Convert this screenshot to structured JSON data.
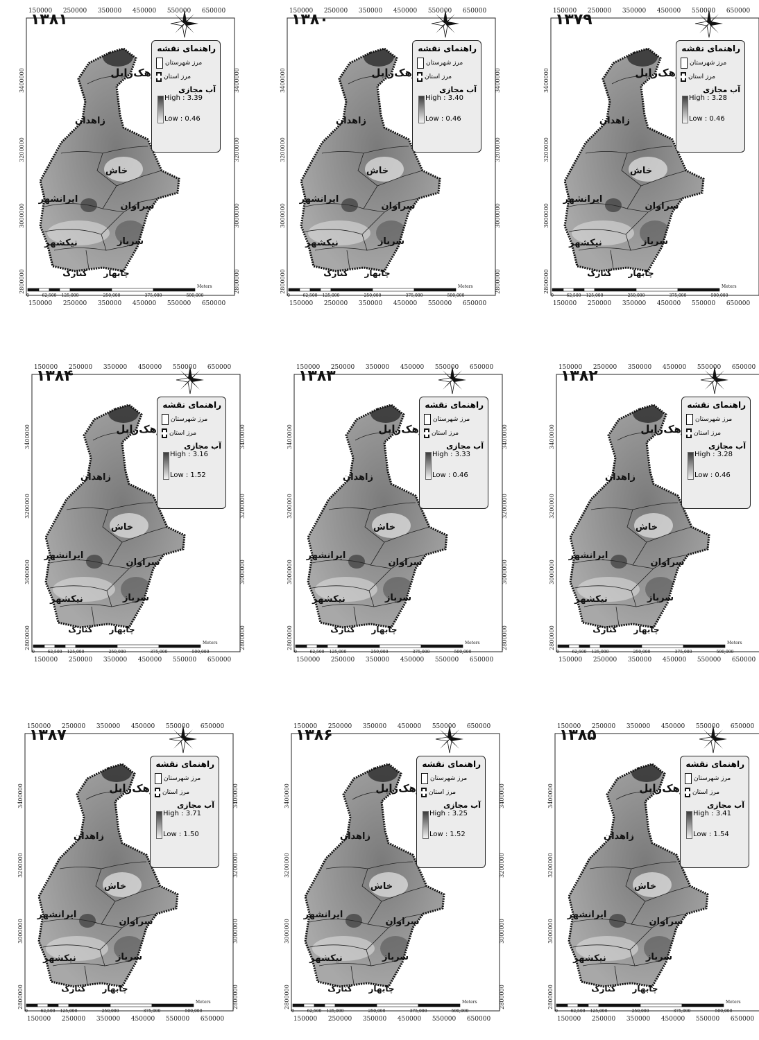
{
  "x_ticks": [
    "150000",
    "250000",
    "350000",
    "450000",
    "550000",
    "650000"
  ],
  "y_ticks": [
    "3400000",
    "3200000",
    "3000000",
    "2800000"
  ],
  "legend": {
    "title": "راهنمای نقشه",
    "county_border": "مرز شهرستان",
    "province_border": "مرز استان",
    "layer_title": "آب مجازی"
  },
  "counties": {
    "zahak_zabol": "زهک‌زابل",
    "zahedan": "زاهدان",
    "khash": "خاش",
    "iranshahr": "ایرانشهر",
    "saravan": "سراوان",
    "nikshahr": "نیکشهر",
    "sarbaz": "سرباز",
    "chabahar": "چابهار",
    "konarak": "کنارک"
  },
  "scale_bar": {
    "labels": [
      "0",
      "62,500",
      "125,000",
      "250,000",
      "375,000",
      "500,000"
    ],
    "unit": "Meters"
  },
  "maps": [
    {
      "year": "۱۳۸۱",
      "high": "High : 3.39",
      "low": "Low : 0.46"
    },
    {
      "year": "۱۳۸۰",
      "high": "High : 3.40",
      "low": "Low : 0.46"
    },
    {
      "year": "۱۳۷۹",
      "high": "High : 3.28",
      "low": "Low : 0.46"
    },
    {
      "year": "۱۳۸۴",
      "high": "High : 3.16",
      "low": "Low : 1.52"
    },
    {
      "year": "۱۳۸۳",
      "high": "High : 3.33",
      "low": "Low : 0.46"
    },
    {
      "year": "۱۳۸۲",
      "high": "High : 3.28",
      "low": "Low : 0.46"
    },
    {
      "year": "۱۳۸۷",
      "high": "High : 3.71",
      "low": "Low : 1.50"
    },
    {
      "year": "۱۳۸۶",
      "high": "High : 3.25",
      "low": "Low : 1.52"
    },
    {
      "year": "۱۳۸۵",
      "high": "High : 3.41",
      "low": "Low : 1.54"
    }
  ]
}
